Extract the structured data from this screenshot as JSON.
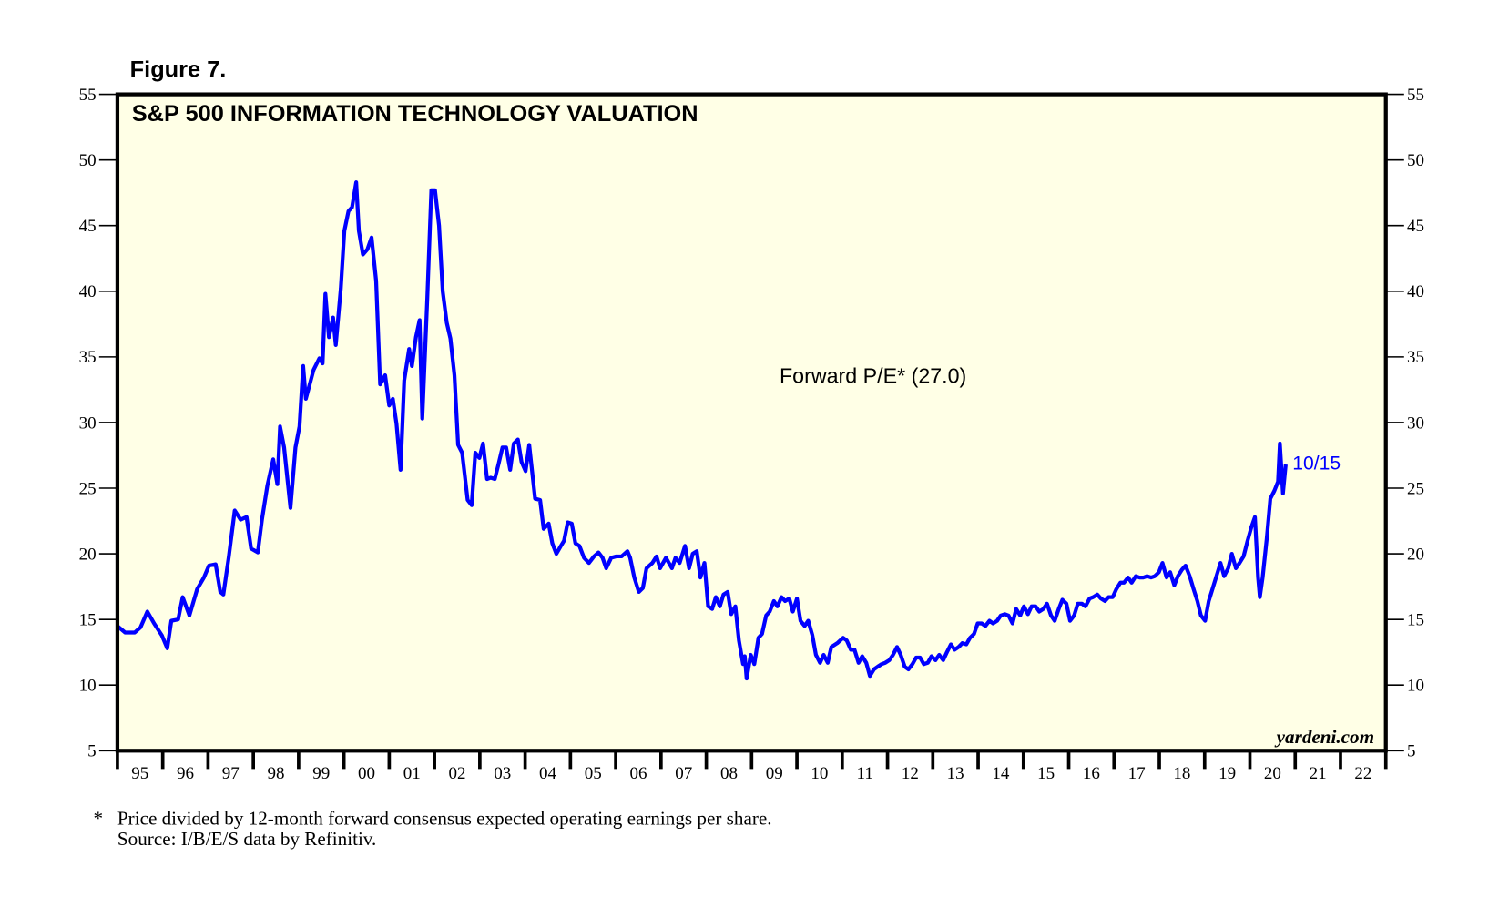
{
  "figure_label": "Figure 7.",
  "footnote": {
    "marker": "*",
    "line1": "Price divided by 12-month forward consensus expected operating earnings per share.",
    "line2": "Source: I/B/E/S data by Refinitiv."
  },
  "watermark": "yardeni.com",
  "chart_data": {
    "type": "line",
    "title": "S&P 500 INFORMATION TECHNOLOGY VALUATION",
    "annotation": "Forward P/E* (27.0)",
    "end_label": "10/15",
    "xlabel": "",
    "ylabel": "",
    "xlim": [
      1995,
      2023
    ],
    "ylim": [
      5,
      55
    ],
    "y_ticks": [
      5,
      10,
      15,
      20,
      25,
      30,
      35,
      40,
      45,
      50,
      55
    ],
    "y_tick_labels": [
      "5",
      "10",
      "15",
      "20",
      "25",
      "30",
      "35",
      "40",
      "45",
      "50",
      "55"
    ],
    "x_tick_labels": [
      "95",
      "96",
      "97",
      "98",
      "99",
      "00",
      "01",
      "02",
      "03",
      "04",
      "05",
      "06",
      "07",
      "08",
      "09",
      "10",
      "11",
      "12",
      "13",
      "14",
      "15",
      "16",
      "17",
      "18",
      "19",
      "20",
      "21",
      "22"
    ],
    "y_axes": "left-and-right",
    "grid": false,
    "colors": {
      "line": "#0000ff",
      "plot_background": "#ffffe6",
      "frame": "#000000"
    },
    "series": [
      {
        "x": [
          1995.0,
          1995.17,
          1995.38,
          1995.51,
          1995.66,
          1995.81,
          1995.98,
          1996.1,
          1996.19,
          1996.34,
          1996.44,
          1996.59,
          1996.76,
          1996.91,
          1997.02,
          1997.17,
          1997.27,
          1997.34,
          1997.46,
          1997.59,
          1997.72,
          1997.85,
          1997.95,
          1998.1,
          1998.19,
          1998.31,
          1998.44,
          1998.53,
          1998.59,
          1998.68,
          1998.82,
          1998.93,
          1999.02,
          1999.1,
          1999.16,
          1999.33,
          1999.46,
          1999.53,
          1999.59,
          1999.67,
          1999.76,
          1999.82,
          1999.93,
          2000.01,
          2000.1,
          2000.18,
          2000.27,
          2000.33,
          2000.42,
          2000.52,
          2000.61,
          2000.71,
          2000.8,
          2000.91,
          2001.0,
          2001.08,
          2001.16,
          2001.25,
          2001.33,
          2001.44,
          2001.5,
          2001.59,
          2001.67,
          2001.73,
          2001.84,
          2001.93,
          2002.01,
          2002.1,
          2002.18,
          2002.27,
          2002.35,
          2002.44,
          2002.52,
          2002.61,
          2002.73,
          2002.82,
          2002.9,
          2002.99,
          2003.07,
          2003.16,
          2003.24,
          2003.33,
          2003.41,
          2003.5,
          2003.58,
          2003.67,
          2003.75,
          2003.84,
          2003.92,
          2004.01,
          2004.09,
          2004.22,
          2004.33,
          2004.41,
          2004.52,
          2004.6,
          2004.69,
          2004.79,
          2004.86,
          2004.94,
          2005.03,
          2005.11,
          2005.2,
          2005.3,
          2005.41,
          2005.52,
          2005.62,
          2005.71,
          2005.79,
          2005.9,
          2006.01,
          2006.13,
          2006.26,
          2006.32,
          2006.41,
          2006.51,
          2006.6,
          2006.68,
          2006.81,
          2006.9,
          2006.98,
          2007.11,
          2007.24,
          2007.32,
          2007.41,
          2007.53,
          2007.62,
          2007.7,
          2007.79,
          2007.87,
          2007.96,
          2008.04,
          2008.13,
          2008.21,
          2008.3,
          2008.38,
          2008.47,
          2008.55,
          2008.64,
          2008.72,
          2008.81,
          2008.85,
          2008.89,
          2008.98,
          2009.06,
          2009.15,
          2009.23,
          2009.32,
          2009.4,
          2009.49,
          2009.57,
          2009.66,
          2009.74,
          2009.83,
          2009.91,
          2010.0,
          2010.08,
          2010.17,
          2010.25,
          2010.34,
          2010.42,
          2010.51,
          2010.59,
          2010.68,
          2010.76,
          2010.89,
          2011.02,
          2011.1,
          2011.19,
          2011.27,
          2011.36,
          2011.44,
          2011.53,
          2011.61,
          2011.7,
          2011.78,
          2011.87,
          2011.95,
          2012.04,
          2012.12,
          2012.21,
          2012.29,
          2012.38,
          2012.46,
          2012.55,
          2012.63,
          2012.72,
          2012.8,
          2012.89,
          2012.97,
          2013.06,
          2013.14,
          2013.23,
          2013.31,
          2013.4,
          2013.48,
          2013.57,
          2013.65,
          2013.74,
          2013.82,
          2013.91,
          2013.99,
          2014.08,
          2014.16,
          2014.25,
          2014.33,
          2014.42,
          2014.5,
          2014.59,
          2014.67,
          2014.76,
          2014.84,
          2014.93,
          2015.01,
          2015.1,
          2015.18,
          2015.27,
          2015.35,
          2015.44,
          2015.52,
          2015.61,
          2015.69,
          2015.78,
          2015.86,
          2015.95,
          2016.03,
          2016.12,
          2016.2,
          2016.29,
          2016.37,
          2016.46,
          2016.54,
          2016.63,
          2016.71,
          2016.8,
          2016.88,
          2016.97,
          2017.05,
          2017.14,
          2017.22,
          2017.31,
          2017.39,
          2017.48,
          2017.56,
          2017.65,
          2017.73,
          2017.82,
          2017.9,
          2017.99,
          2018.07,
          2018.16,
          2018.24,
          2018.33,
          2018.41,
          2018.5,
          2018.58,
          2018.67,
          2018.75,
          2018.84,
          2018.92,
          2019.01,
          2019.09,
          2019.18,
          2019.26,
          2019.35,
          2019.43,
          2019.52,
          2019.6,
          2019.69,
          2019.77,
          2019.86,
          2019.94,
          2020.03,
          2020.11,
          2020.18,
          2020.22,
          2020.28,
          2020.37,
          2020.45,
          2020.54,
          2020.62,
          2020.66,
          2020.73,
          2020.79
        ],
        "y": [
          14.5,
          14.0,
          14.0,
          14.4,
          15.6,
          14.7,
          13.8,
          12.8,
          14.9,
          15.0,
          16.7,
          15.3,
          17.3,
          18.2,
          19.1,
          19.2,
          17.1,
          16.9,
          19.8,
          23.3,
          22.6,
          22.8,
          20.4,
          20.1,
          22.6,
          25.2,
          27.2,
          25.3,
          29.7,
          28.1,
          23.5,
          28.1,
          29.7,
          34.3,
          31.8,
          34.0,
          34.9,
          34.5,
          39.8,
          36.5,
          38.0,
          35.9,
          40.2,
          44.6,
          46.1,
          46.4,
          48.3,
          44.6,
          42.8,
          43.2,
          44.1,
          40.8,
          32.9,
          33.6,
          31.3,
          31.8,
          29.9,
          26.4,
          33.2,
          35.6,
          34.3,
          36.5,
          37.8,
          30.3,
          39.5,
          47.7,
          47.7,
          45.0,
          40.0,
          37.6,
          36.4,
          33.6,
          28.3,
          27.7,
          24.1,
          23.7,
          27.7,
          27.3,
          28.4,
          25.7,
          25.8,
          25.7,
          26.8,
          28.1,
          28.1,
          26.4,
          28.4,
          28.7,
          27.0,
          26.3,
          28.3,
          24.2,
          24.1,
          21.9,
          22.3,
          20.8,
          20.0,
          20.6,
          21.0,
          22.4,
          22.3,
          20.8,
          20.6,
          19.7,
          19.3,
          19.8,
          20.1,
          19.7,
          18.9,
          19.7,
          19.8,
          19.8,
          20.2,
          19.7,
          18.2,
          17.1,
          17.4,
          18.9,
          19.3,
          19.8,
          18.9,
          19.7,
          18.9,
          19.7,
          19.3,
          20.6,
          18.9,
          20.0,
          20.2,
          18.2,
          19.3,
          16.0,
          15.8,
          16.7,
          16.0,
          16.9,
          17.1,
          15.4,
          16.0,
          13.4,
          11.6,
          12.2,
          10.5,
          12.3,
          11.6,
          13.6,
          13.9,
          15.3,
          15.6,
          16.4,
          16.0,
          16.7,
          16.4,
          16.6,
          15.6,
          16.6,
          14.9,
          14.5,
          14.9,
          13.8,
          12.3,
          11.7,
          12.3,
          11.7,
          12.9,
          13.2,
          13.6,
          13.4,
          12.7,
          12.7,
          11.7,
          12.2,
          11.7,
          10.7,
          11.2,
          11.4,
          11.6,
          11.7,
          11.9,
          12.3,
          12.9,
          12.3,
          11.4,
          11.2,
          11.6,
          12.1,
          12.1,
          11.6,
          11.7,
          12.2,
          11.9,
          12.3,
          11.9,
          12.5,
          13.1,
          12.7,
          12.9,
          13.2,
          13.1,
          13.6,
          13.9,
          14.7,
          14.7,
          14.5,
          14.9,
          14.7,
          14.9,
          15.3,
          15.4,
          15.3,
          14.7,
          15.8,
          15.3,
          16.0,
          15.4,
          16.0,
          16.0,
          15.6,
          15.8,
          16.2,
          15.3,
          14.9,
          15.8,
          16.5,
          16.2,
          14.9,
          15.3,
          16.2,
          16.2,
          16.0,
          16.6,
          16.7,
          16.9,
          16.6,
          16.4,
          16.7,
          16.7,
          17.3,
          17.8,
          17.8,
          18.2,
          17.8,
          18.3,
          18.2,
          18.2,
          18.3,
          18.2,
          18.3,
          18.6,
          19.3,
          18.2,
          18.6,
          17.6,
          18.3,
          18.8,
          19.1,
          18.3,
          17.4,
          16.4,
          15.3,
          14.9,
          16.4,
          17.4,
          18.3,
          19.3,
          18.3,
          18.9,
          20.0,
          18.9,
          19.3,
          19.8,
          20.9,
          22.0,
          22.8,
          18.2,
          16.7,
          18.2,
          21.1,
          24.2,
          24.8,
          25.5,
          28.4,
          24.6,
          26.8
        ]
      }
    ]
  }
}
